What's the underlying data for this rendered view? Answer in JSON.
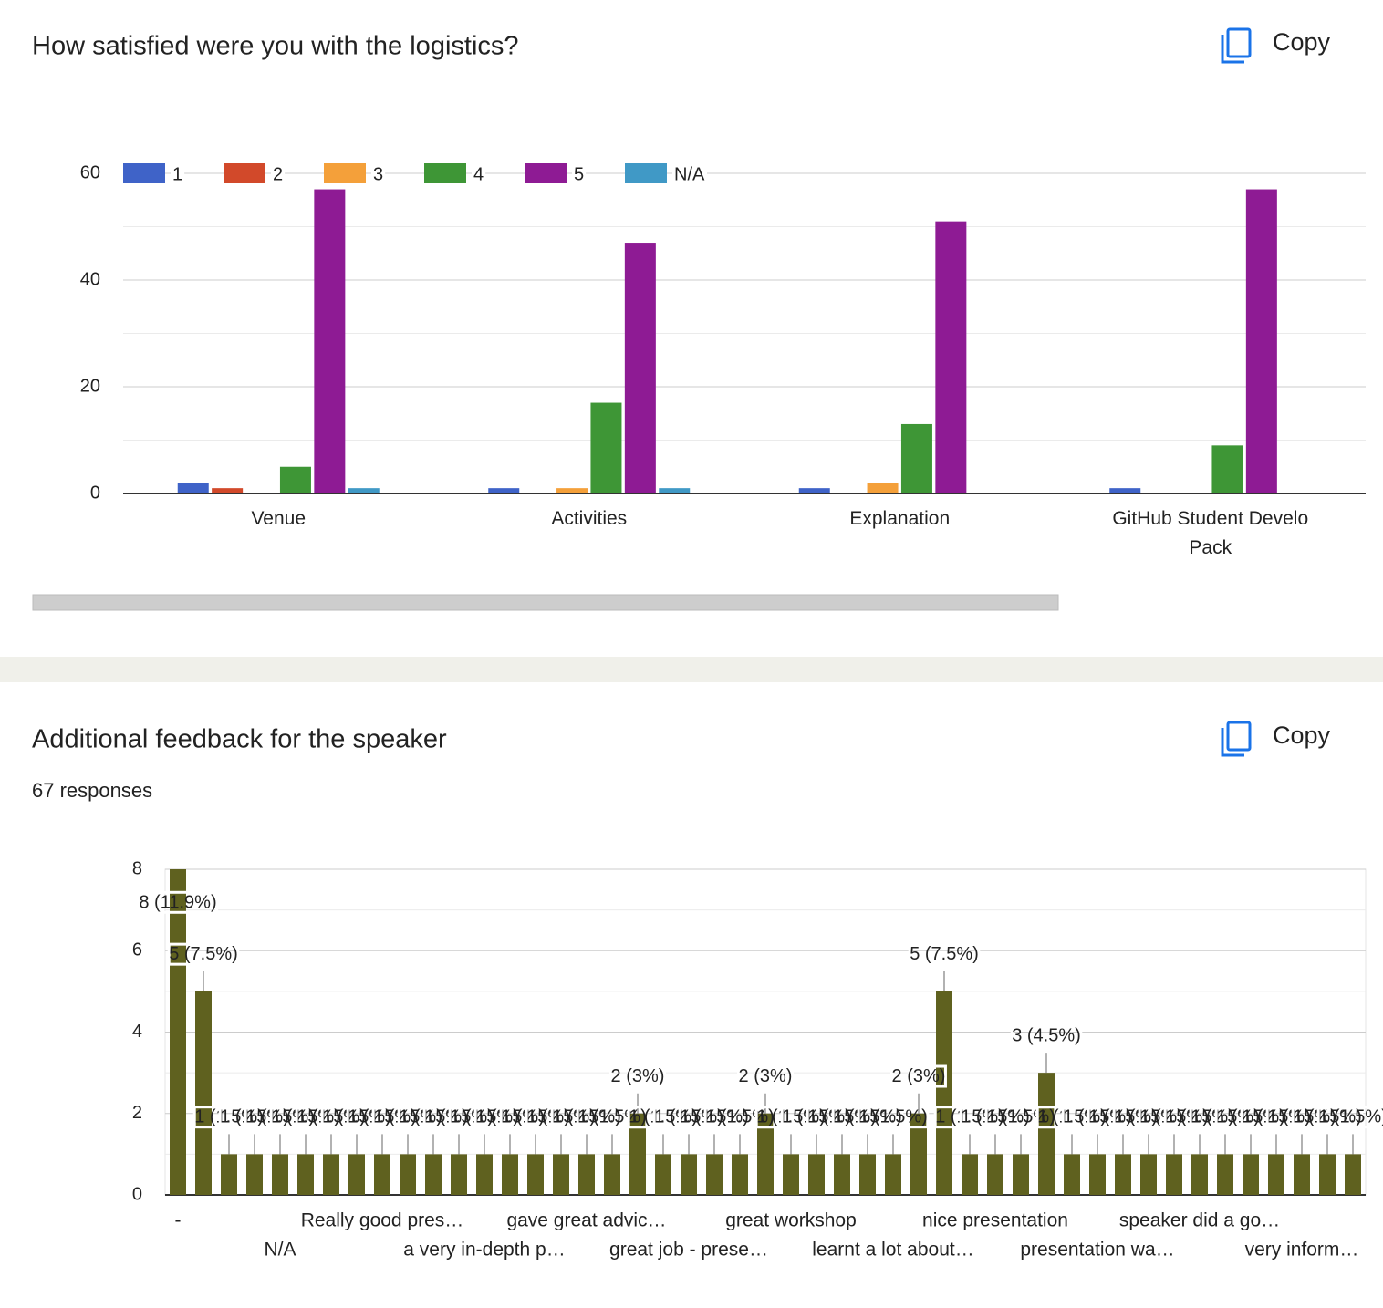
{
  "chart_data": [
    {
      "type": "bar",
      "title": "How satisfied were you with the logistics?",
      "copy_button": "Copy",
      "categories": [
        "Venue",
        "Activities",
        "Explanation",
        "GitHub Student Develo Pack"
      ],
      "series": [
        {
          "name": "1",
          "color": "#3f63c8",
          "values": [
            2,
            1,
            1,
            1
          ]
        },
        {
          "name": "2",
          "color": "#d2492a",
          "values": [
            1,
            0,
            0,
            0
          ]
        },
        {
          "name": "3",
          "color": "#f4a03a",
          "values": [
            0,
            1,
            2,
            0
          ]
        },
        {
          "name": "4",
          "color": "#3e9636",
          "values": [
            5,
            17,
            13,
            9
          ]
        },
        {
          "name": "5",
          "color": "#8e1b94",
          "values": [
            57,
            47,
            51,
            57
          ]
        },
        {
          "name": "N/A",
          "color": "#4099c6",
          "values": [
            1,
            1,
            0,
            0
          ]
        }
      ],
      "ylim": [
        0,
        60
      ],
      "yticks": [
        0,
        20,
        40,
        60
      ],
      "grid": true,
      "legend": "top"
    },
    {
      "type": "bar",
      "title": "Additional feedback for the speaker",
      "subtitle": "67 responses",
      "copy_button": "Copy",
      "categories": [
        "-",
        null,
        null,
        null,
        "N/A",
        null,
        null,
        null,
        "Really good pres…",
        null,
        null,
        null,
        "a very in-depth p…",
        null,
        null,
        null,
        "gave great advic…",
        null,
        null,
        null,
        "great job - prese…",
        null,
        null,
        null,
        "great workshop",
        null,
        null,
        null,
        "learnt a lot about…",
        null,
        null,
        null,
        "nice presentation",
        null,
        null,
        null,
        "presentation wa…",
        null,
        null,
        null,
        "speaker did a go…",
        null,
        null,
        null,
        "very inform…",
        null,
        null
      ],
      "values": [
        8,
        5,
        1,
        1,
        1,
        1,
        1,
        1,
        1,
        1,
        1,
        1,
        1,
        1,
        1,
        1,
        1,
        1,
        2,
        1,
        1,
        1,
        1,
        2,
        1,
        1,
        1,
        1,
        1,
        2,
        5,
        1,
        1,
        1,
        3,
        1,
        1,
        1,
        1,
        1,
        1,
        1,
        1,
        1,
        1,
        1,
        1
      ],
      "value_labels": [
        "8 (11.9%)",
        "5 (7.5%)",
        "1 (1.5%)",
        "1 (1.5%)",
        "1 (1.5%)",
        "1 (1.5%)",
        "1 (1.5%)",
        "1 (1.5%)",
        "1 (1.5%)",
        "1 (1.5%)",
        "1 (1.5%)",
        "1 (1.5%)",
        "1 (1.5%)",
        "1 (1.5%)",
        "1 (1.5%)",
        "1 (1.5%)",
        "1 (1.5%)",
        "1 (1.5%)",
        "2 (3%)",
        "1 (1.5%)",
        "1 (1.5%)",
        "1 (1.5%)",
        "1 (1.5%)",
        "2 (3%)",
        "1 (1.5%)",
        "1 (1.5%)",
        "1 (1.5%)",
        "1 (1.5%)",
        "1 (1.5%)",
        "2 (3%)",
        "5 (7.5%)",
        "1 (1.5%)",
        "1 (1.5%)",
        "1 (1.5%)",
        "3 (4.5%)",
        "1 (1.5%)",
        "1 (1.5%)",
        "1 (1.5%)",
        "1 (1.5%)",
        "1 (1.5%)",
        "1 (1.5%)",
        "1 (1.5%)",
        "1 (1.5%)",
        "1 (1.5%)",
        "1 (1.5%)",
        "1 (1.5%)",
        "1 (1.5%)"
      ],
      "color": "#5f611f",
      "ylim": [
        0,
        8
      ],
      "yticks": [
        0,
        2,
        4,
        6,
        8
      ],
      "grid": true
    }
  ]
}
